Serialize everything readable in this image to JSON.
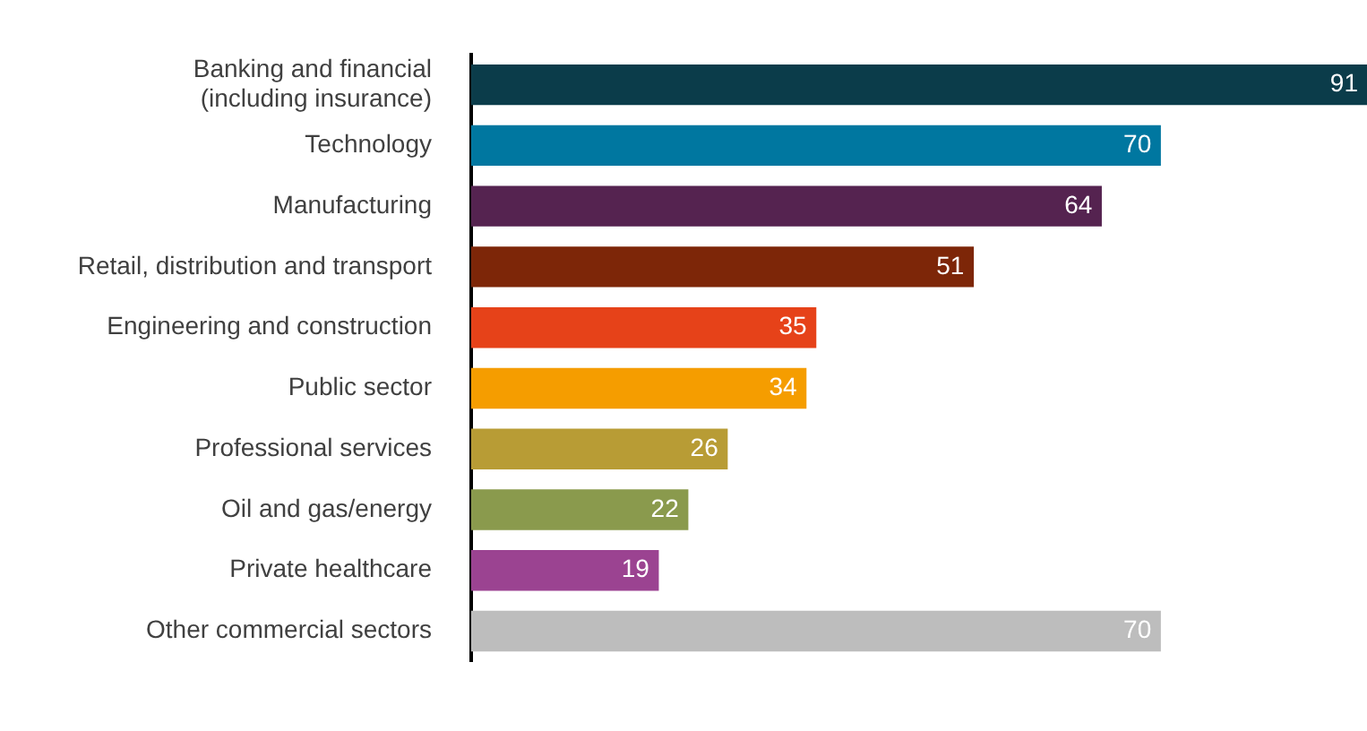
{
  "chart_data": {
    "type": "bar",
    "orientation": "horizontal",
    "data_labels": true,
    "legend": false,
    "categories": [
      "Banking and financial\n(including insurance)",
      "Technology",
      "Manufacturing",
      "Retail, distribution and transport",
      "Engineering and construction",
      "Public sector",
      "Professional services",
      "Oil and gas/energy",
      "Private healthcare",
      "Other commercial sectors"
    ],
    "values": [
      91,
      70,
      64,
      51,
      35,
      34,
      26,
      22,
      19,
      70
    ],
    "colors": [
      "#0b3c4a",
      "#0077a0",
      "#552350",
      "#7d2608",
      "#e64219",
      "#f59d00",
      "#b89c35",
      "#8a9a4d",
      "#9b4391",
      "#bdbdbd"
    ]
  }
}
